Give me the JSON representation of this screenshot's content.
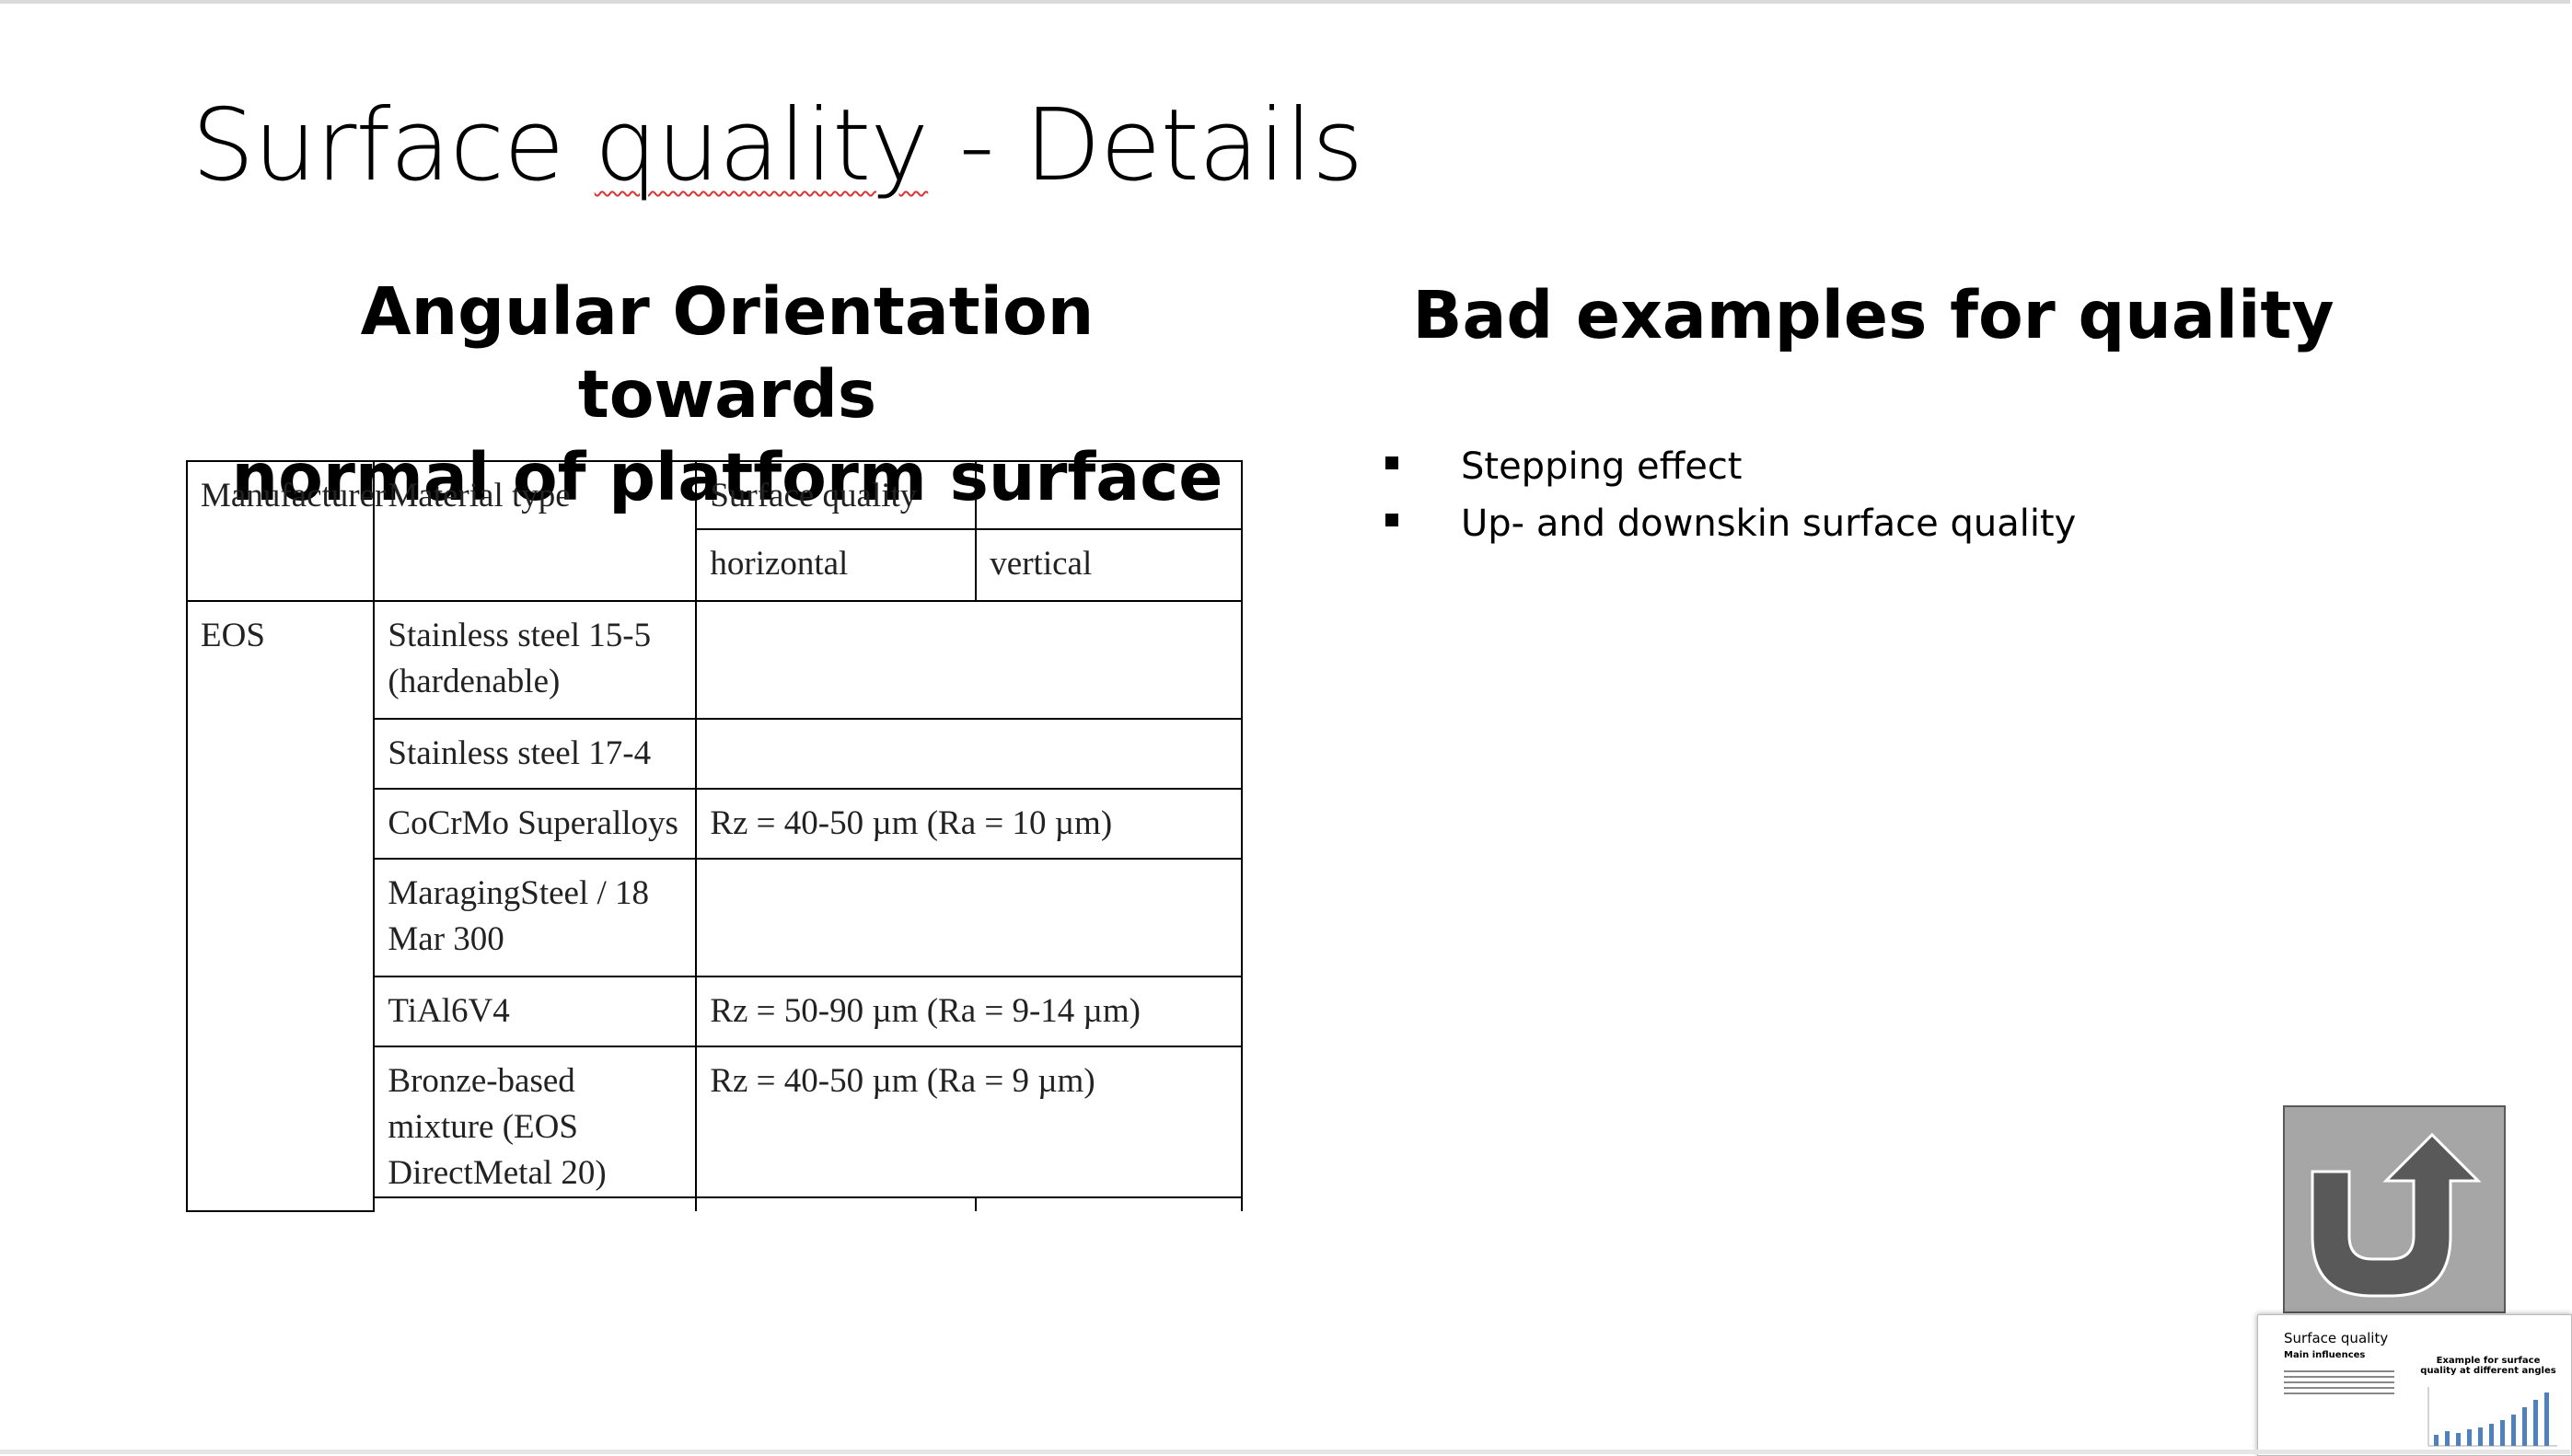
{
  "slide": {
    "title": "Surface quality - Details",
    "left_heading_line1": "Angular Orientation towards",
    "left_heading_line2": "normal of platform surface",
    "right_heading": "Bad examples for quality",
    "bullets": [
      "Stepping effect",
      "Up- and downskin surface quality"
    ]
  },
  "table": {
    "headers": {
      "manufacturer": "Manufacturer",
      "material_type": "Material type",
      "surface_quality": "Surface quality",
      "horizontal": "horizontal",
      "vertical": "vertical"
    },
    "manufacturer": "EOS",
    "rows": [
      {
        "material": "Stainless steel 15-5 (hardenable)",
        "quality": ""
      },
      {
        "material": "Stainless steel 17-4",
        "quality": ""
      },
      {
        "material": "CoCrMo Superalloys",
        "quality": "Rz = 40-50 µm (Ra = 10 µm)"
      },
      {
        "material": "MaragingSteel / 18 Mar 300",
        "quality": ""
      },
      {
        "material": "TiAl6V4",
        "quality": "Rz = 50-90 µm (Ra = 9-14 µm)"
      },
      {
        "material": "Bronze-based mixture (EOS DirectMetal 20)",
        "quality": "Rz = 40-50 µm (Ra = 9 µm)"
      }
    ]
  },
  "thumbnail": {
    "title": "Surface quality",
    "subtitle": "Main influences",
    "chart_caption": "Example for surface quality at different angles"
  },
  "icons": {
    "return": "u-turn-arrow-icon"
  },
  "colors": {
    "return_button_bg": "#a6a6a6",
    "return_arrow": "#595959",
    "spellcheck_underline": "#dd3333"
  }
}
